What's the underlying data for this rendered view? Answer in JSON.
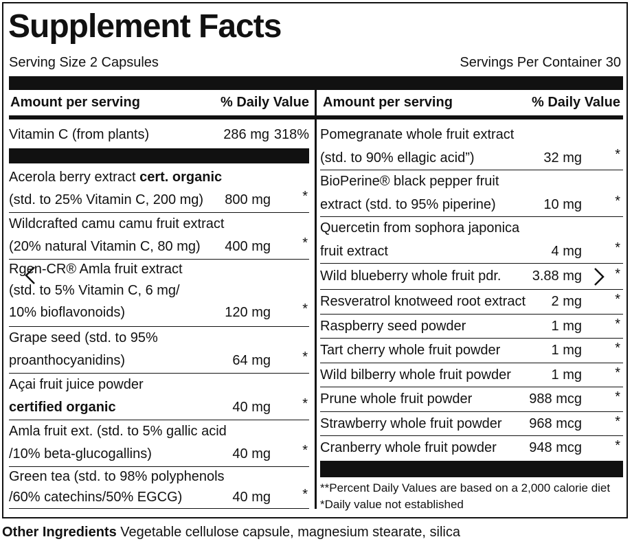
{
  "title": "Supplement Facts",
  "serving_size": "Serving Size 2 Capsules",
  "servings_per_container": "Servings Per Container 30",
  "header_left": {
    "amount": "Amount per serving",
    "dv": "% Daily Value"
  },
  "header_right": {
    "amount": "Amount per serving",
    "dv": "% Daily Value"
  },
  "vitamin_c": {
    "name": "Vitamin C (from plants)",
    "amount": "286 mg",
    "dv": "318%"
  },
  "left_items": [
    {
      "line1": "Acerola berry extract ",
      "line1_bold": "cert. organic",
      "line2": "(std. to 25% Vitamin C, 200 mg)",
      "amount": "800 mg",
      "dv": "*"
    },
    {
      "line1": "Wildcrafted camu camu fruit extract",
      "line2": "(20% natural Vitamin C, 80 mg)",
      "amount": "400 mg",
      "dv": "*"
    },
    {
      "line1": "Rgen-CR® Amla fruit extract",
      "line2": "(std. to 5% Vitamin C, 6 mg/",
      "line3": "10% bioflavonoids)",
      "amount": "120 mg",
      "dv": "*"
    },
    {
      "line1": "Grape seed (std. to 95%",
      "line2": "proanthocyanidins)",
      "amount": "64 mg",
      "dv": "*"
    },
    {
      "line1": "Açai fruit juice powder",
      "line2_bold": "certified organic",
      "amount": "40 mg",
      "dv": "*"
    },
    {
      "line1": "Amla fruit ext. (std. to 5% gallic acid",
      "line2": "/10% beta-glucogallins)",
      "amount": "40 mg",
      "dv": "*"
    },
    {
      "line1": "Green tea (std. to 98% polyphenols",
      "line2": "/60% catechins/50% EGCG)",
      "amount": "40 mg",
      "dv": "*"
    }
  ],
  "right_items": [
    {
      "line1": "Pomegranate whole fruit extract",
      "line2": "(std. to 90% ellagic acid”)",
      "amount": "32 mg",
      "dv": "*"
    },
    {
      "line1": "BioPerine® black pepper fruit",
      "line2": "extract (std. to 95% piperine)",
      "amount": "10 mg",
      "dv": "*"
    },
    {
      "line1": "Quercetin from sophora japonica",
      "line2": "fruit extract",
      "amount": "4 mg",
      "dv": "*"
    },
    {
      "line1": "Wild blueberry whole fruit pdr.",
      "amount": "3.88 mg",
      "dv": "*"
    },
    {
      "line1": "Resveratrol knotweed root extract",
      "amount": "2 mg",
      "dv": "*"
    },
    {
      "line1": "Raspberry seed powder",
      "amount": "1 mg",
      "dv": "*"
    },
    {
      "line1": "Tart cherry whole fruit powder",
      "amount": "1 mg",
      "dv": "*"
    },
    {
      "line1": "Wild bilberry whole fruit powder",
      "amount": "1 mg",
      "dv": "*"
    },
    {
      "line1": "Prune whole fruit powder",
      "amount": "988 mcg",
      "dv": "*"
    },
    {
      "line1": "Strawberry whole fruit powder",
      "amount": "968 mcg",
      "dv": "*"
    },
    {
      "line1": "Cranberry whole fruit powder",
      "amount": "948 mcg",
      "dv": "*"
    }
  ],
  "footnote1": "**Percent Daily Values are based on a 2,000 calorie diet",
  "footnote2": "*Daily value not established",
  "other_label": "Other Ingredients",
  "other_text": " Vegetable cellulose capsule, magnesium stearate, silica",
  "icons": {
    "prev": "chevron-left-icon",
    "next": "chevron-right-icon"
  }
}
